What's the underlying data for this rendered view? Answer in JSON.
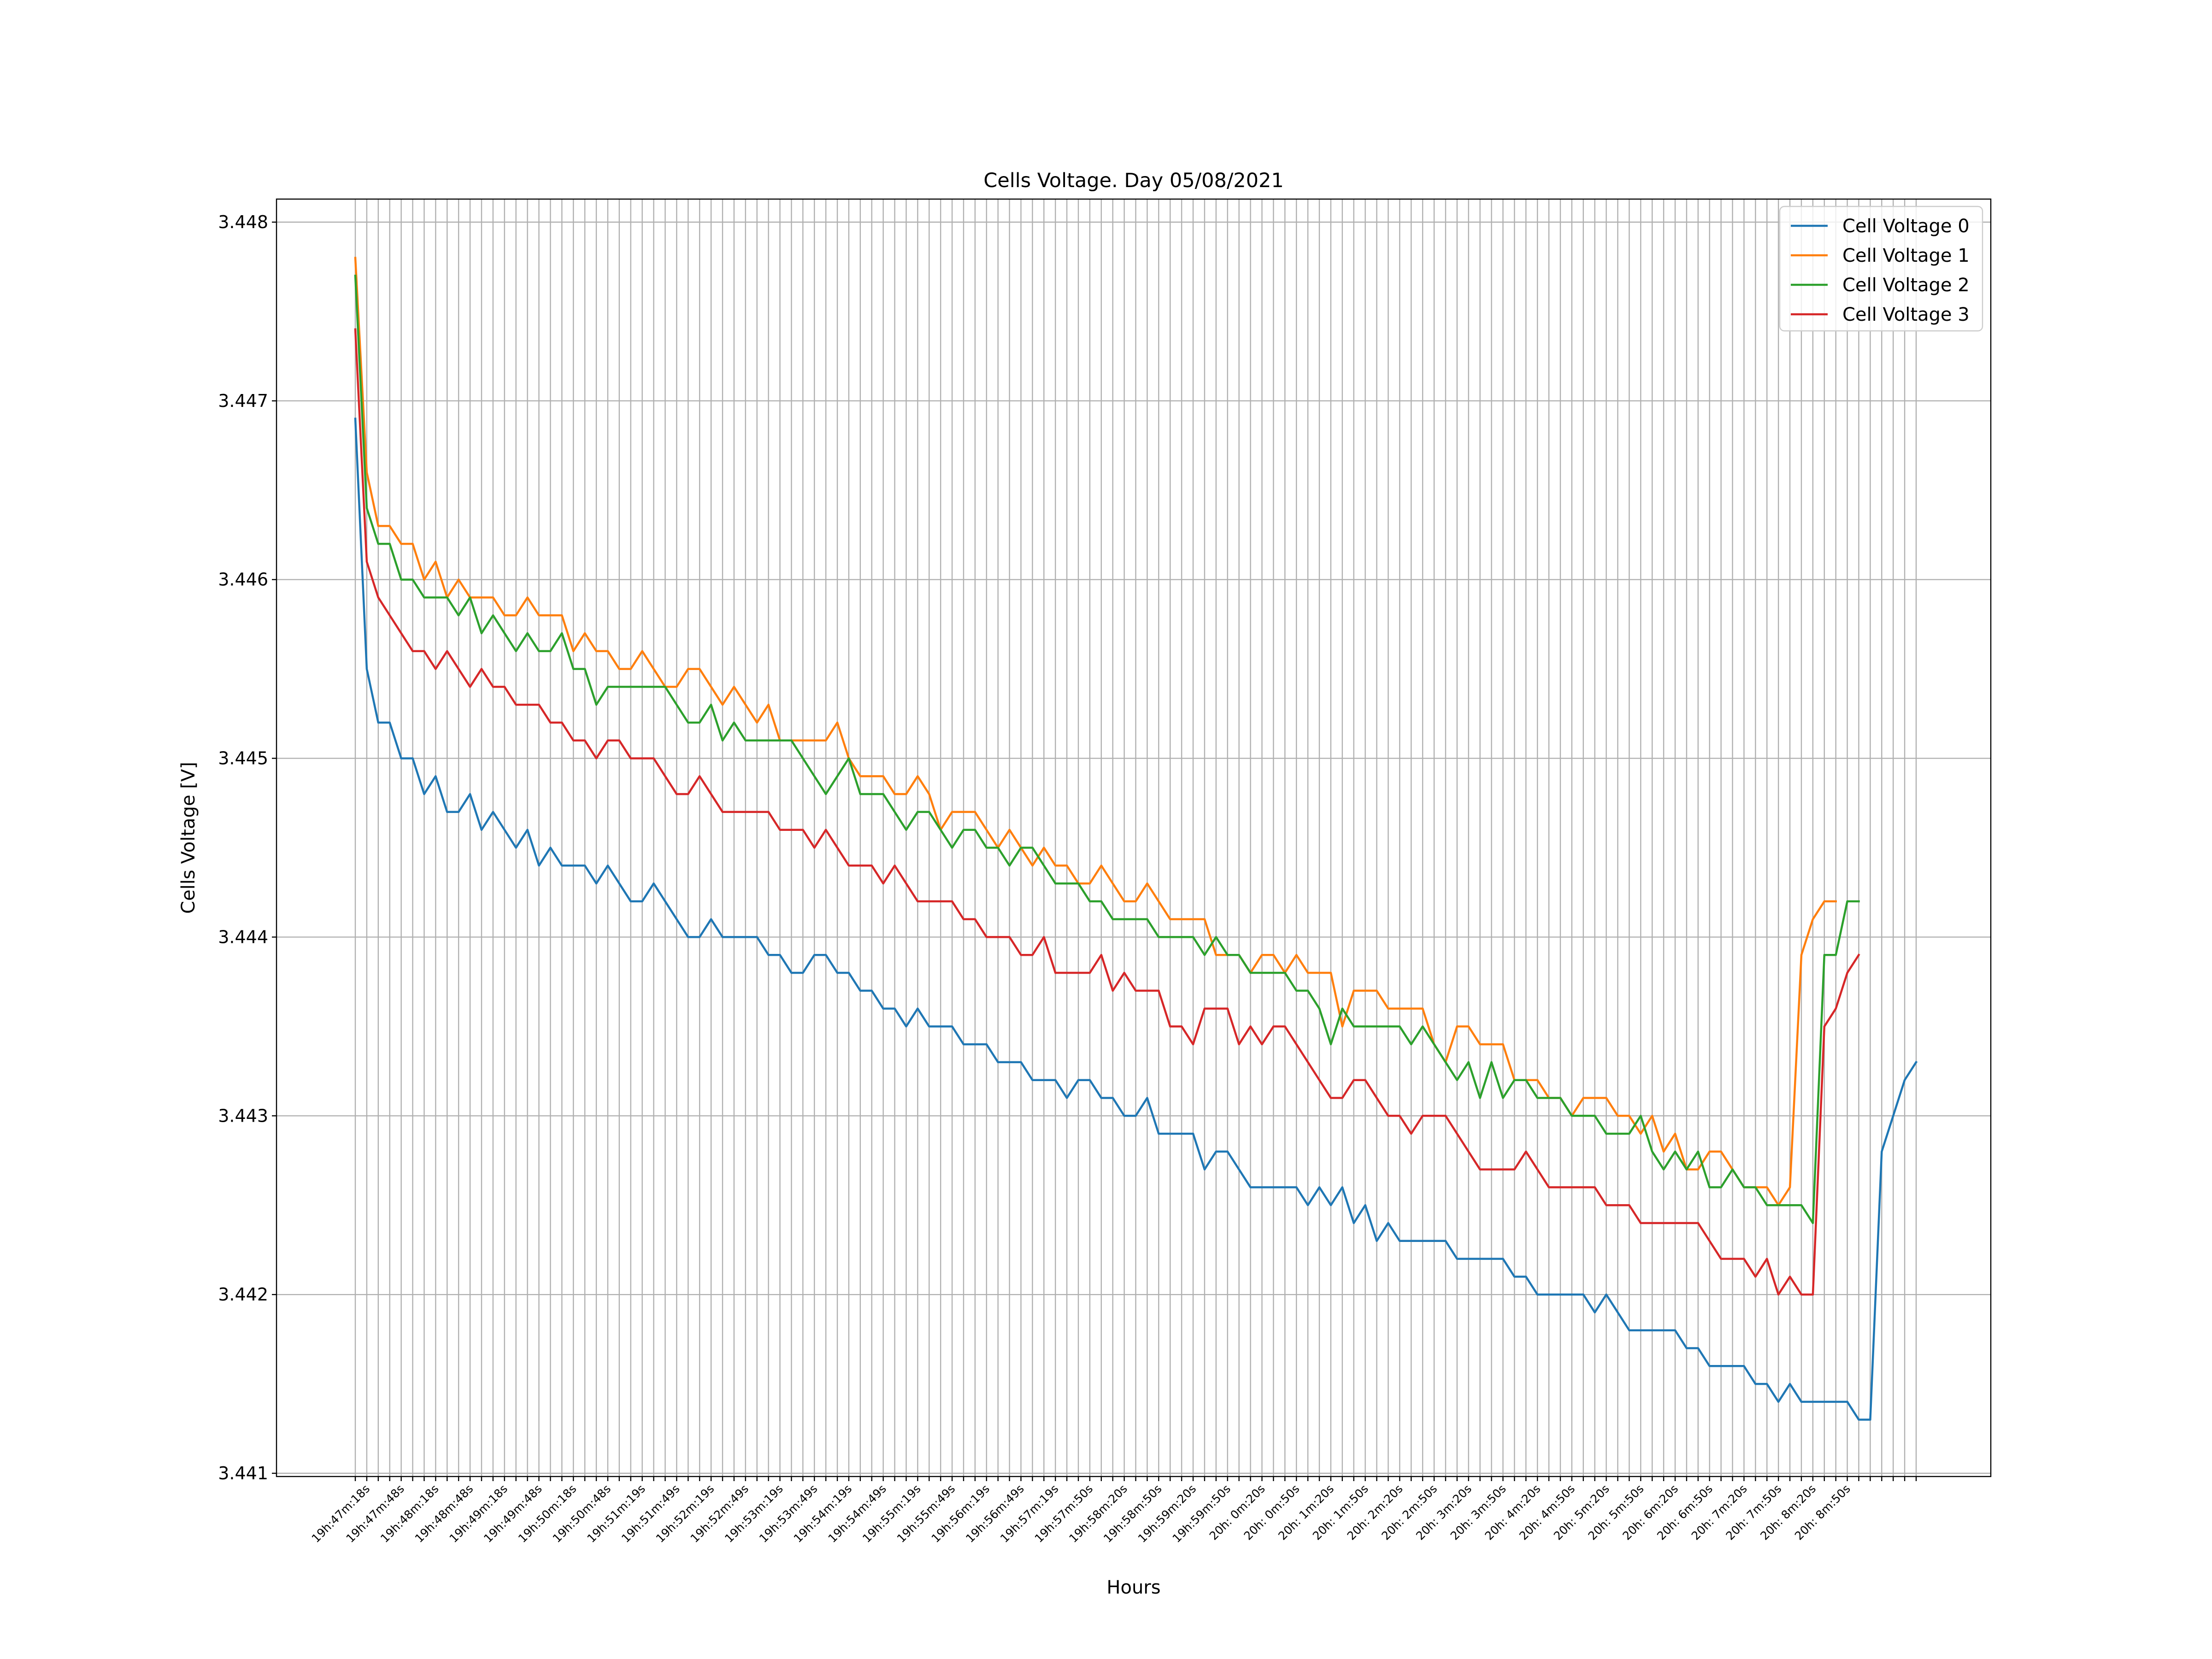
{
  "chart_data": {
    "type": "line",
    "title": "Cells Voltage. Day 05/08/2021",
    "xlabel": "Hours",
    "ylabel": "Cells Voltage [V]",
    "ylim": [
      3.441,
      3.448
    ],
    "yticks": [
      3.441,
      3.442,
      3.443,
      3.444,
      3.445,
      3.446,
      3.447,
      3.448
    ],
    "ytick_labels": [
      "3.441",
      "3.442",
      "3.443",
      "3.444",
      "3.445",
      "3.446",
      "3.447",
      "3.448"
    ],
    "grid": true,
    "legend_position": "top-right",
    "x_tick_labels": [
      "19h:47m:18s",
      "19h:47m:48s",
      "19h:48m:18s",
      "19h:48m:48s",
      "19h:49m:18s",
      "19h:49m:48s",
      "19h:50m:18s",
      "19h:50m:48s",
      "19h:51m:19s",
      "19h:51m:49s",
      "19h:52m:19s",
      "19h:52m:49s",
      "19h:53m:19s",
      "19h:53m:49s",
      "19h:54m:19s",
      "19h:54m:49s",
      "19h:55m:19s",
      "19h:55m:49s",
      "19h:56m:19s",
      "19h:56m:49s",
      "19h:57m:19s",
      "19h:57m:50s",
      "19h:58m:20s",
      "19h:58m:50s",
      "19h:59m:20s",
      "19h:59m:50s",
      "20h: 0m:20s",
      "20h: 0m:50s",
      "20h: 1m:20s",
      "20h: 1m:50s",
      "20h: 2m:20s",
      "20h: 2m:50s",
      "20h: 3m:20s",
      "20h: 3m:50s",
      "20h: 4m:20s",
      "20h: 4m:50s",
      "20h: 5m:20s",
      "20h: 5m:50s",
      "20h: 6m:20s",
      "20h: 6m:50s",
      "20h: 7m:20s",
      "20h: 7m:50s",
      "20h: 8m:20s",
      "20h: 8m:50s"
    ],
    "series": [
      {
        "name": "Cell Voltage 0",
        "color": "#1f77b4",
        "values": [
          3.4469,
          3.4455,
          3.4452,
          3.4452,
          3.445,
          3.445,
          3.4448,
          3.4449,
          3.4447,
          3.4447,
          3.4448,
          3.4446,
          3.4447,
          3.4446,
          3.4445,
          3.4446,
          3.4444,
          3.4445,
          3.4444,
          3.4444,
          3.4444,
          3.4443,
          3.4444,
          3.4443,
          3.4442,
          3.4442,
          3.4443,
          3.4442,
          3.4441,
          3.444,
          3.444,
          3.4441,
          3.444,
          3.444,
          3.444,
          3.444,
          3.4439,
          3.4439,
          3.4438,
          3.4438,
          3.4439,
          3.4439,
          3.4438,
          3.4438,
          3.4437,
          3.4437,
          3.4436,
          3.4436,
          3.4435,
          3.4436,
          3.4435,
          3.4435,
          3.4435,
          3.4434,
          3.4434,
          3.4434,
          3.4433,
          3.4433,
          3.4433,
          3.4432,
          3.4432,
          3.4432,
          3.4431,
          3.4432,
          3.4432,
          3.4431,
          3.4431,
          3.443,
          3.443,
          3.4431,
          3.4429,
          3.4429,
          3.4429,
          3.4429,
          3.4427,
          3.4428,
          3.4428,
          3.4427,
          3.4426,
          3.4426,
          3.4426,
          3.4426,
          3.4426,
          3.4425,
          3.4426,
          3.4425,
          3.4426,
          3.4424,
          3.4425,
          3.4423,
          3.4424,
          3.4423,
          3.4423,
          3.4423,
          3.4423,
          3.4423,
          3.4422,
          3.4422,
          3.4422,
          3.4422,
          3.4422,
          3.4421,
          3.4421,
          3.442,
          3.442,
          3.442,
          3.442,
          3.442,
          3.4419,
          3.442,
          3.4419,
          3.4418,
          3.4418,
          3.4418,
          3.4418,
          3.4418,
          3.4417,
          3.4417,
          3.4416,
          3.4416,
          3.4416,
          3.4416,
          3.4415,
          3.4415,
          3.4414,
          3.4415,
          3.4414,
          3.4414,
          3.4414,
          3.4414,
          3.4414,
          3.4413,
          3.4413,
          3.4428,
          3.443,
          3.4432,
          3.4433
        ]
      },
      {
        "name": "Cell Voltage 1",
        "color": "#ff7f0e",
        "values": [
          3.4478,
          3.4466,
          3.4463,
          3.4463,
          3.4462,
          3.4462,
          3.446,
          3.4461,
          3.4459,
          3.446,
          3.4459,
          3.4459,
          3.4459,
          3.4458,
          3.4458,
          3.4459,
          3.4458,
          3.4458,
          3.4458,
          3.4456,
          3.4457,
          3.4456,
          3.4456,
          3.4455,
          3.4455,
          3.4456,
          3.4455,
          3.4454,
          3.4454,
          3.4455,
          3.4455,
          3.4454,
          3.4453,
          3.4454,
          3.4453,
          3.4452,
          3.4453,
          3.4451,
          3.4451,
          3.4451,
          3.4451,
          3.4451,
          3.4452,
          3.445,
          3.4449,
          3.4449,
          3.4449,
          3.4448,
          3.4448,
          3.4449,
          3.4448,
          3.4446,
          3.4447,
          3.4447,
          3.4447,
          3.4446,
          3.4445,
          3.4446,
          3.4445,
          3.4444,
          3.4445,
          3.4444,
          3.4444,
          3.4443,
          3.4443,
          3.4444,
          3.4443,
          3.4442,
          3.4442,
          3.4443,
          3.4442,
          3.4441,
          3.4441,
          3.4441,
          3.4441,
          3.4439,
          3.4439,
          3.4439,
          3.4438,
          3.4439,
          3.4439,
          3.4438,
          3.4439,
          3.4438,
          3.4438,
          3.4438,
          3.4435,
          3.4437,
          3.4437,
          3.4437,
          3.4436,
          3.4436,
          3.4436,
          3.4436,
          3.4434,
          3.4433,
          3.4435,
          3.4435,
          3.4434,
          3.4434,
          3.4434,
          3.4432,
          3.4432,
          3.4432,
          3.4431,
          3.4431,
          3.443,
          3.4431,
          3.4431,
          3.4431,
          3.443,
          3.443,
          3.4429,
          3.443,
          3.4428,
          3.4429,
          3.4427,
          3.4427,
          3.4428,
          3.4428,
          3.4427,
          3.4426,
          3.4426,
          3.4426,
          3.4425,
          3.4426,
          3.4439,
          3.4441,
          3.4442,
          3.4442
        ]
      },
      {
        "name": "Cell Voltage 2",
        "color": "#2ca02c",
        "values": [
          3.4477,
          3.4464,
          3.4462,
          3.4462,
          3.446,
          3.446,
          3.4459,
          3.4459,
          3.4459,
          3.4458,
          3.4459,
          3.4457,
          3.4458,
          3.4457,
          3.4456,
          3.4457,
          3.4456,
          3.4456,
          3.4457,
          3.4455,
          3.4455,
          3.4453,
          3.4454,
          3.4454,
          3.4454,
          3.4454,
          3.4454,
          3.4454,
          3.4453,
          3.4452,
          3.4452,
          3.4453,
          3.4451,
          3.4452,
          3.4451,
          3.4451,
          3.4451,
          3.4451,
          3.4451,
          3.445,
          3.4449,
          3.4448,
          3.4449,
          3.445,
          3.4448,
          3.4448,
          3.4448,
          3.4447,
          3.4446,
          3.4447,
          3.4447,
          3.4446,
          3.4445,
          3.4446,
          3.4446,
          3.4445,
          3.4445,
          3.4444,
          3.4445,
          3.4445,
          3.4444,
          3.4443,
          3.4443,
          3.4443,
          3.4442,
          3.4442,
          3.4441,
          3.4441,
          3.4441,
          3.4441,
          3.444,
          3.444,
          3.444,
          3.444,
          3.4439,
          3.444,
          3.4439,
          3.4439,
          3.4438,
          3.4438,
          3.4438,
          3.4438,
          3.4437,
          3.4437,
          3.4436,
          3.4434,
          3.4436,
          3.4435,
          3.4435,
          3.4435,
          3.4435,
          3.4435,
          3.4434,
          3.4435,
          3.4434,
          3.4433,
          3.4432,
          3.4433,
          3.4431,
          3.4433,
          3.4431,
          3.4432,
          3.4432,
          3.4431,
          3.4431,
          3.4431,
          3.443,
          3.443,
          3.443,
          3.4429,
          3.4429,
          3.4429,
          3.443,
          3.4428,
          3.4427,
          3.4428,
          3.4427,
          3.4428,
          3.4426,
          3.4426,
          3.4427,
          3.4426,
          3.4426,
          3.4425,
          3.4425,
          3.4425,
          3.4425,
          3.4424,
          3.4439,
          3.4439,
          3.4442,
          3.4442
        ]
      },
      {
        "name": "Cell Voltage 3",
        "color": "#d62728",
        "values": [
          3.4474,
          3.4461,
          3.4459,
          3.4458,
          3.4457,
          3.4456,
          3.4456,
          3.4455,
          3.4456,
          3.4455,
          3.4454,
          3.4455,
          3.4454,
          3.4454,
          3.4453,
          3.4453,
          3.4453,
          3.4452,
          3.4452,
          3.4451,
          3.4451,
          3.445,
          3.4451,
          3.4451,
          3.445,
          3.445,
          3.445,
          3.4449,
          3.4448,
          3.4448,
          3.4449,
          3.4448,
          3.4447,
          3.4447,
          3.4447,
          3.4447,
          3.4447,
          3.4446,
          3.4446,
          3.4446,
          3.4445,
          3.4446,
          3.4445,
          3.4444,
          3.4444,
          3.4444,
          3.4443,
          3.4444,
          3.4443,
          3.4442,
          3.4442,
          3.4442,
          3.4442,
          3.4441,
          3.4441,
          3.444,
          3.444,
          3.444,
          3.4439,
          3.4439,
          3.444,
          3.4438,
          3.4438,
          3.4438,
          3.4438,
          3.4439,
          3.4437,
          3.4438,
          3.4437,
          3.4437,
          3.4437,
          3.4435,
          3.4435,
          3.4434,
          3.4436,
          3.4436,
          3.4436,
          3.4434,
          3.4435,
          3.4434,
          3.4435,
          3.4435,
          3.4434,
          3.4433,
          3.4432,
          3.4431,
          3.4431,
          3.4432,
          3.4432,
          3.4431,
          3.443,
          3.443,
          3.4429,
          3.443,
          3.443,
          3.443,
          3.4429,
          3.4428,
          3.4427,
          3.4427,
          3.4427,
          3.4427,
          3.4428,
          3.4427,
          3.4426,
          3.4426,
          3.4426,
          3.4426,
          3.4426,
          3.4425,
          3.4425,
          3.4425,
          3.4424,
          3.4424,
          3.4424,
          3.4424,
          3.4424,
          3.4424,
          3.4423,
          3.4422,
          3.4422,
          3.4422,
          3.4421,
          3.4422,
          3.442,
          3.4421,
          3.442,
          3.442,
          3.4435,
          3.4436,
          3.4438,
          3.4439
        ]
      }
    ]
  }
}
